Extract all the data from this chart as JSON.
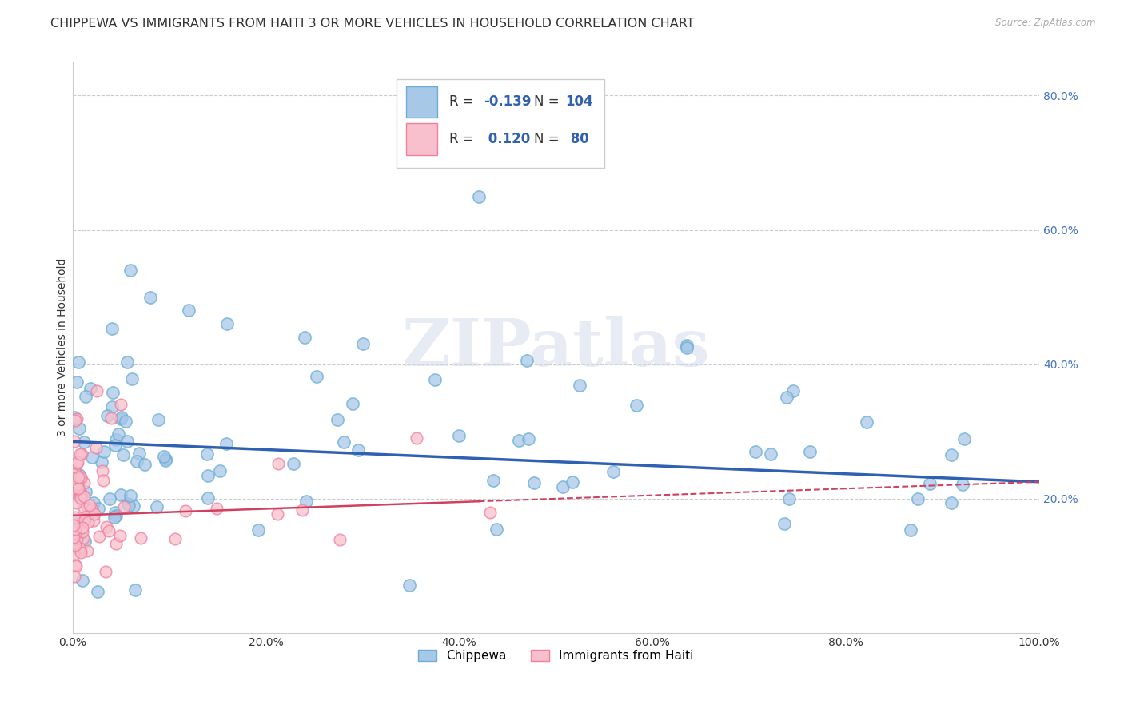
{
  "title": "CHIPPEWA VS IMMIGRANTS FROM HAITI 3 OR MORE VEHICLES IN HOUSEHOLD CORRELATION CHART",
  "source": "Source: ZipAtlas.com",
  "ylabel": "3 or more Vehicles in Household",
  "xlim": [
    0.0,
    1.0
  ],
  "ylim": [
    0.0,
    0.85
  ],
  "xticks": [
    0.0,
    0.2,
    0.4,
    0.6,
    0.8,
    1.0
  ],
  "xtick_labels": [
    "0.0%",
    "20.0%",
    "40.0%",
    "60.0%",
    "80.0%",
    "100.0%"
  ],
  "yticks": [
    0.2,
    0.4,
    0.6,
    0.8
  ],
  "ytick_labels": [
    "20.0%",
    "40.0%",
    "60.0%",
    "80.0%"
  ],
  "chippewa_color": "#a8c8e8",
  "chippewa_edge_color": "#6aaed6",
  "haiti_color": "#f8c0cc",
  "haiti_edge_color": "#f080a0",
  "chippewa_line_color": "#3060b0",
  "haiti_line_color": "#d04060",
  "grid_color": "#cccccc",
  "background_color": "#ffffff",
  "watermark": "ZIPatlas",
  "title_fontsize": 11.5,
  "axis_label_fontsize": 10,
  "tick_fontsize": 10,
  "tick_color": "#4472c4",
  "legend_fontsize": 12,
  "r_chippewa": -0.139,
  "n_chippewa": 104,
  "r_haiti": 0.12,
  "n_haiti": 80,
  "chip_line_y0": 0.285,
  "chip_line_y1": 0.225,
  "haiti_line_y0": 0.175,
  "haiti_line_y1": 0.225
}
